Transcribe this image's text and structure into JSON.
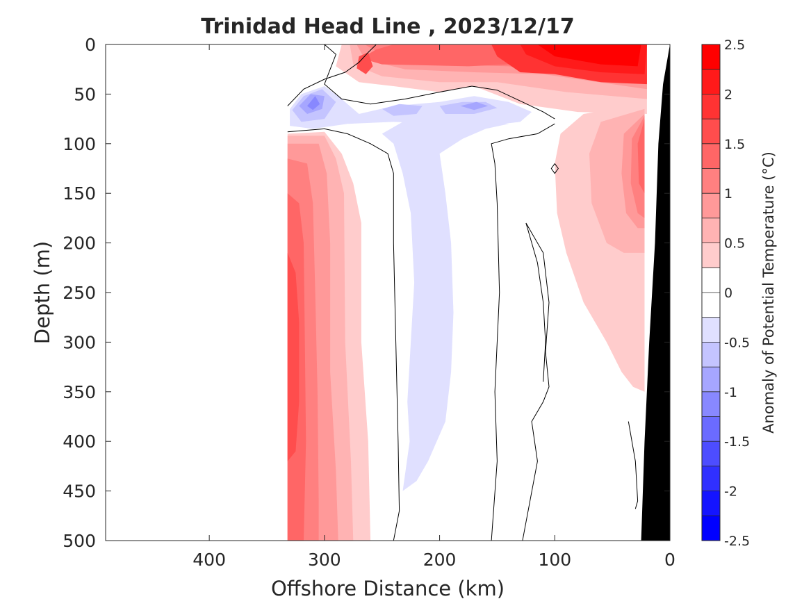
{
  "chart_data": {
    "type": "contour",
    "title": "Trinidad Head Line , 2023/12/17",
    "xlabel": "Offshore Distance (km)",
    "ylabel": "Depth (m)",
    "xlim": [
      490,
      0
    ],
    "ylim": [
      0,
      500
    ],
    "x_axis_reversed": true,
    "y_axis_reversed": true,
    "x_ticks": [
      400,
      300,
      200,
      100,
      0
    ],
    "x_tick_labels": [
      "400",
      "300",
      "200",
      "100",
      "0"
    ],
    "y_ticks": [
      0,
      50,
      100,
      150,
      200,
      250,
      300,
      350,
      400,
      450,
      500
    ],
    "y_tick_labels": [
      "0",
      "50",
      "100",
      "150",
      "200",
      "250",
      "300",
      "350",
      "400",
      "450",
      "500"
    ],
    "data_extent_km": [
      332,
      0
    ],
    "zero_contour_drawn": true,
    "bathymetry_color": "#000000",
    "colorbar": {
      "label": "Anomaly of Potential Temperature (°C)",
      "range": [
        -2.5,
        2.5
      ],
      "ticks": [
        2.5,
        2,
        1.5,
        1,
        0.5,
        0,
        -0.5,
        -1,
        -1.5,
        -2,
        -2.5
      ],
      "tick_labels": [
        "2.5",
        "2",
        "1.5",
        "1",
        "0.5",
        "0",
        "-0.5",
        "-1",
        "-1.5",
        "-2",
        "-2.5"
      ],
      "levels": [
        {
          "lo": 2.25,
          "hi": 2.5,
          "color": "#ff0000"
        },
        {
          "lo": 2.0,
          "hi": 2.25,
          "color": "#ff1a1a"
        },
        {
          "lo": 1.75,
          "hi": 2.0,
          "color": "#ff3333"
        },
        {
          "lo": 1.5,
          "hi": 1.75,
          "color": "#ff4d4d"
        },
        {
          "lo": 1.25,
          "hi": 1.5,
          "color": "#ff6666"
        },
        {
          "lo": 1.0,
          "hi": 1.25,
          "color": "#ff8080"
        },
        {
          "lo": 0.75,
          "hi": 1.0,
          "color": "#ff9999"
        },
        {
          "lo": 0.5,
          "hi": 0.75,
          "color": "#ffb3b3"
        },
        {
          "lo": 0.25,
          "hi": 0.5,
          "color": "#ffcccc"
        },
        {
          "lo": 0.0,
          "hi": 0.25,
          "color": "#ffffff"
        },
        {
          "lo": -0.25,
          "hi": 0.0,
          "color": "#ffffff"
        },
        {
          "lo": -0.5,
          "hi": -0.25,
          "color": "#e0e0ff"
        },
        {
          "lo": -0.75,
          "hi": -0.5,
          "color": "#c4c4ff"
        },
        {
          "lo": -1.0,
          "hi": -0.75,
          "color": "#a6a6ff"
        },
        {
          "lo": -1.25,
          "hi": -1.0,
          "color": "#8888ff"
        },
        {
          "lo": -1.5,
          "hi": -1.25,
          "color": "#6b6bff"
        },
        {
          "lo": -1.75,
          "hi": -1.5,
          "color": "#4d4dff"
        },
        {
          "lo": -2.0,
          "hi": -1.75,
          "color": "#3030ff"
        },
        {
          "lo": -2.25,
          "hi": -2.0,
          "color": "#1414ff"
        },
        {
          "lo": -2.5,
          "hi": -2.25,
          "color": "#0000ff"
        }
      ]
    },
    "features": [
      {
        "name": "offshore-warm-column",
        "region_km": [
          332,
          280
        ],
        "depth_m": [
          90,
          500
        ],
        "anomaly_max": 1.75
      },
      {
        "name": "surface-warm-layer",
        "region_km": [
          290,
          20
        ],
        "depth_m": [
          0,
          55
        ],
        "anomaly_max": 2.5
      },
      {
        "name": "subsurface-cold-lens",
        "region_km": [
          330,
          140
        ],
        "depth_m": [
          45,
          90
        ],
        "anomaly_min": -1.25
      },
      {
        "name": "cold-tongue",
        "region_km": [
          250,
          180
        ],
        "depth_m": [
          90,
          450
        ],
        "anomaly_min": -0.5
      },
      {
        "name": "nearshore-warm-slope",
        "region_km": [
          110,
          20
        ],
        "depth_m": [
          60,
          360
        ],
        "anomaly_max": 1.5
      }
    ]
  }
}
